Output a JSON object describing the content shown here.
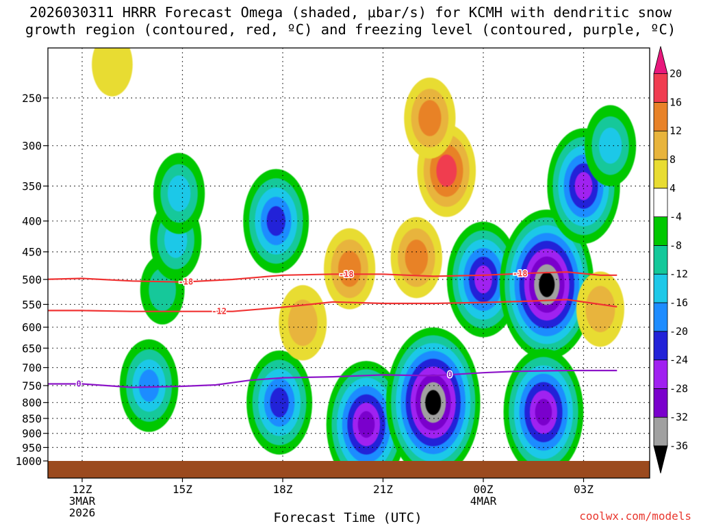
{
  "title_line1": "2026030311 HRRR Forecast Omega (shaded, μbar/s) for KCMH with dendritic snow",
  "title_line2": "growth region (contoured, red, ºC) and freezing level (contoured, purple, ºC)",
  "credit": "coolwx.com/models",
  "chart_data": {
    "type": "heatmap",
    "xlabel": "Forecast Time (UTC)",
    "ylabel": "",
    "x_range_hours_utc": [
      10.8,
      28.0
    ],
    "y_range_hPa": [
      1000,
      200
    ],
    "y_scale": "log-pressure",
    "grid": "dotted",
    "x_ticks": [
      {
        "hour": 12,
        "label": "12Z",
        "sub": [
          "3MAR",
          "2026"
        ]
      },
      {
        "hour": 15,
        "label": "15Z",
        "sub": []
      },
      {
        "hour": 18,
        "label": "18Z",
        "sub": []
      },
      {
        "hour": 21,
        "label": "21Z",
        "sub": []
      },
      {
        "hour": 24,
        "label": "00Z",
        "sub": [
          "4MAR"
        ]
      },
      {
        "hour": 27,
        "label": "03Z",
        "sub": []
      }
    ],
    "y_ticks": [
      250,
      300,
      350,
      400,
      450,
      500,
      550,
      600,
      650,
      700,
      750,
      800,
      850,
      900,
      950,
      1000
    ],
    "colorbar": {
      "levels": [
        -36,
        -32,
        -28,
        -24,
        -20,
        -16,
        -12,
        -8,
        -4,
        4,
        8,
        12,
        16,
        20
      ],
      "colors": [
        "#000000",
        "#a0a0a0",
        "#7a00cc",
        "#a020f0",
        "#2222d8",
        "#1e8cff",
        "#1ec8e8",
        "#14c89a",
        "#00c800",
        "#ffffff",
        "#e8dc32",
        "#e8b43c",
        "#e88228",
        "#f03c50",
        "#e8187c"
      ]
    },
    "omega_features": [
      {
        "hour": 12.9,
        "p": 220,
        "value": 6
      },
      {
        "hour": 14.4,
        "p": 520,
        "value": -8
      },
      {
        "hour": 14.8,
        "p": 430,
        "value": -12
      },
      {
        "hour": 14.9,
        "p": 360,
        "value": -12
      },
      {
        "hour": 14.0,
        "p": 750,
        "value": -16
      },
      {
        "hour": 17.8,
        "p": 400,
        "value": -20
      },
      {
        "hour": 17.9,
        "p": 800,
        "value": -20
      },
      {
        "hour": 20.0,
        "p": 480,
        "value": 12
      },
      {
        "hour": 20.5,
        "p": 870,
        "value": -28
      },
      {
        "hour": 18.6,
        "p": 590,
        "value": 10
      },
      {
        "hour": 22.0,
        "p": 460,
        "value": 12
      },
      {
        "hour": 22.9,
        "p": 330,
        "value": 16
      },
      {
        "hour": 22.4,
        "p": 270,
        "value": 12
      },
      {
        "hour": 22.5,
        "p": 800,
        "value": -36
      },
      {
        "hour": 24.0,
        "p": 500,
        "value": -24
      },
      {
        "hour": 25.9,
        "p": 510,
        "value": -36
      },
      {
        "hour": 25.8,
        "p": 830,
        "value": -28
      },
      {
        "hour": 27.0,
        "p": 350,
        "value": -24
      },
      {
        "hour": 27.8,
        "p": 300,
        "value": -12
      },
      {
        "hour": 27.5,
        "p": 560,
        "value": 10
      }
    ],
    "contours": [
      {
        "name": "-18",
        "color": "#f03232",
        "points": [
          [
            10.8,
            500
          ],
          [
            12,
            498
          ],
          [
            13.5,
            503
          ],
          [
            15,
            505
          ],
          [
            16.5,
            500
          ],
          [
            18,
            492
          ],
          [
            19.5,
            490
          ],
          [
            21,
            490
          ],
          [
            22.5,
            494
          ],
          [
            24,
            492
          ],
          [
            25.5,
            488
          ],
          [
            26.5,
            486
          ],
          [
            27.5,
            492
          ],
          [
            28,
            492
          ]
        ],
        "labels": [
          {
            "hour": 15.1,
            "text": "-18"
          },
          {
            "hour": 19.9,
            "text": "-18"
          },
          {
            "hour": 25.1,
            "text": "-18"
          }
        ]
      },
      {
        "name": "-12",
        "color": "#f03232",
        "points": [
          [
            10.8,
            563
          ],
          [
            12,
            563
          ],
          [
            13.5,
            565
          ],
          [
            15,
            565
          ],
          [
            16.5,
            565
          ],
          [
            18,
            556
          ],
          [
            19.5,
            545
          ],
          [
            21,
            548
          ],
          [
            22.5,
            548
          ],
          [
            24,
            546
          ],
          [
            25.5,
            543
          ],
          [
            26.5,
            540
          ],
          [
            27.5,
            550
          ],
          [
            28,
            555
          ]
        ],
        "labels": [
          {
            "hour": 16.1,
            "text": "-12"
          }
        ]
      },
      {
        "name": "0",
        "color": "#8c14c8",
        "points": [
          [
            10.8,
            745
          ],
          [
            12,
            745
          ],
          [
            13.5,
            755
          ],
          [
            15,
            752
          ],
          [
            16,
            748
          ],
          [
            17,
            735
          ],
          [
            18,
            728
          ],
          [
            19.5,
            725
          ],
          [
            21,
            720
          ],
          [
            22.5,
            722
          ],
          [
            24,
            714
          ],
          [
            25,
            710
          ],
          [
            26.5,
            708
          ],
          [
            28,
            708
          ]
        ],
        "labels": [
          {
            "hour": 11.9,
            "text": "0"
          },
          {
            "hour": 23.0,
            "text": "0"
          }
        ]
      }
    ]
  }
}
